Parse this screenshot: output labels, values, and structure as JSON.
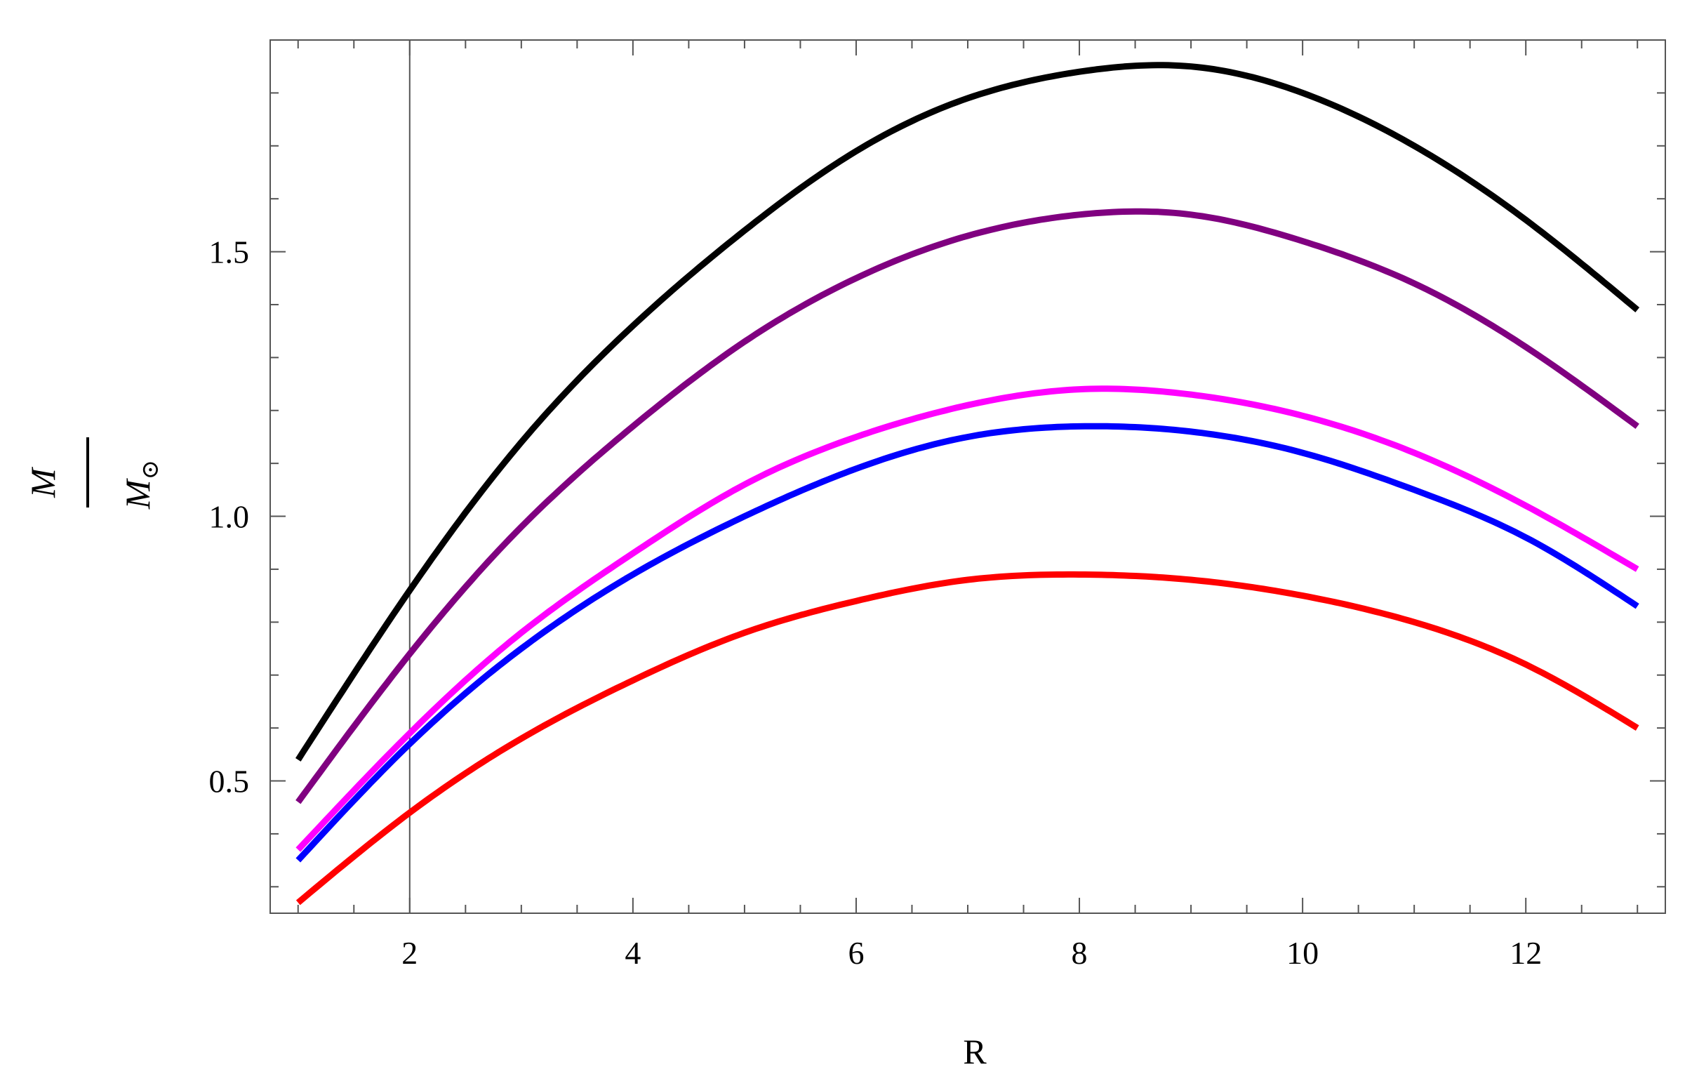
{
  "chart_data": {
    "type": "line",
    "title": "",
    "xlabel": "R",
    "ylabel": {
      "numerator": "M",
      "denominator": "M",
      "subscript": "⊙"
    },
    "xlim": [
      0.75,
      13.25
    ],
    "ylim": [
      0.25,
      1.9
    ],
    "xticks": [
      2,
      4,
      6,
      8,
      10,
      12
    ],
    "xtick_labels": [
      "2",
      "4",
      "6",
      "8",
      "10",
      "12"
    ],
    "yticks": [
      0.5,
      1.0,
      1.5
    ],
    "ytick_labels": [
      "0.5",
      "1.0",
      "1.5"
    ],
    "vertical_reference_line_x": 2,
    "grid": false,
    "x": [
      1,
      2,
      3,
      4,
      5,
      6,
      7,
      8,
      9,
      10,
      11,
      12,
      13
    ],
    "series": [
      {
        "color": "#000000",
        "values": [
          0.54,
          0.86,
          1.14,
          1.36,
          1.54,
          1.69,
          1.79,
          1.84,
          1.85,
          1.8,
          1.7,
          1.56,
          1.39
        ]
      },
      {
        "color": "#800080",
        "values": [
          0.46,
          0.74,
          0.98,
          1.17,
          1.33,
          1.45,
          1.53,
          1.57,
          1.57,
          1.52,
          1.44,
          1.32,
          1.17
        ]
      },
      {
        "color": "#ff00ff",
        "values": [
          0.37,
          0.59,
          0.78,
          0.93,
          1.06,
          1.15,
          1.21,
          1.24,
          1.23,
          1.19,
          1.12,
          1.02,
          0.9
        ]
      },
      {
        "color": "#0000ff",
        "values": [
          0.35,
          0.57,
          0.75,
          0.89,
          1.0,
          1.09,
          1.15,
          1.17,
          1.16,
          1.12,
          1.05,
          0.96,
          0.83
        ]
      },
      {
        "color": "#ff0000",
        "values": [
          0.27,
          0.44,
          0.58,
          0.69,
          0.78,
          0.84,
          0.88,
          0.89,
          0.88,
          0.85,
          0.8,
          0.72,
          0.6
        ]
      }
    ]
  }
}
